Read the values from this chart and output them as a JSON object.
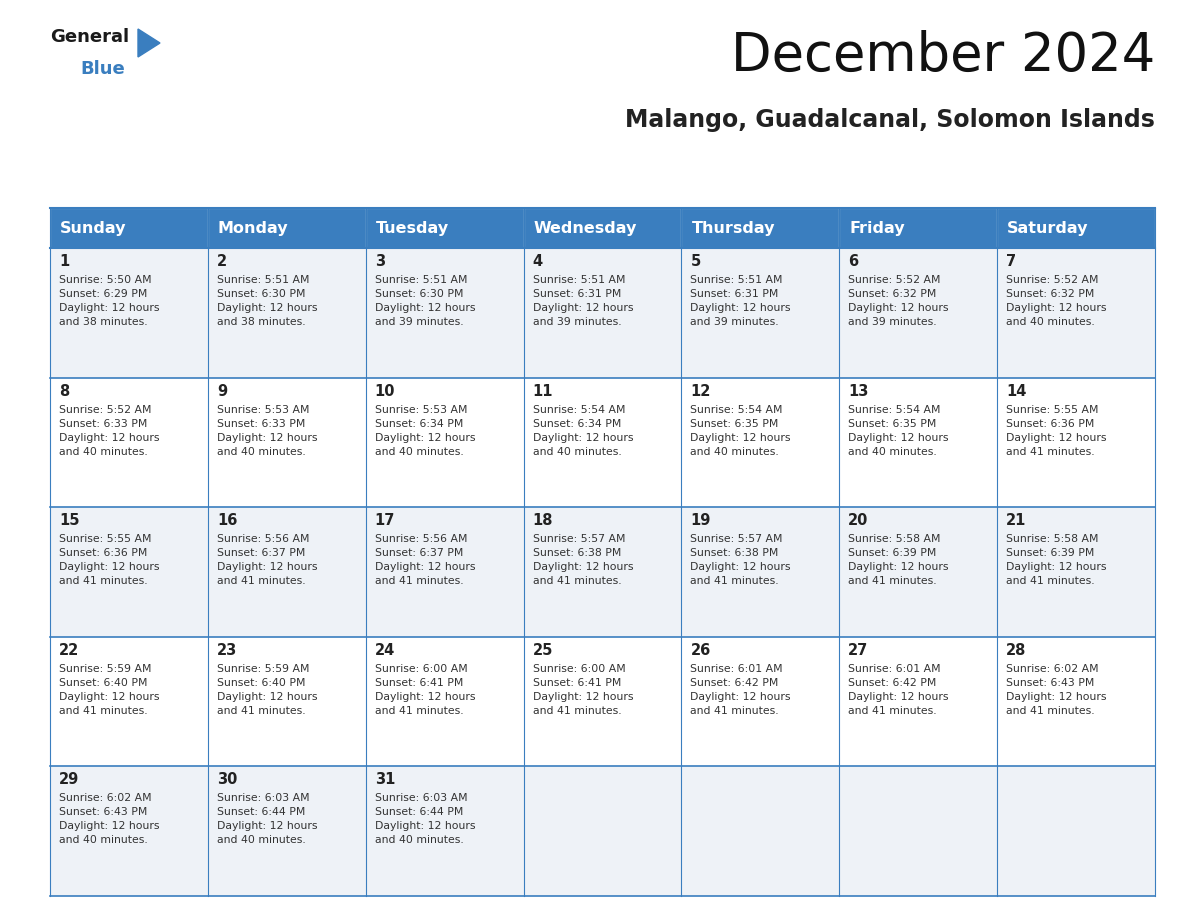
{
  "title": "December 2024",
  "subtitle": "Malango, Guadalcanal, Solomon Islands",
  "header_bg_color": "#3a7ebf",
  "header_text_color": "#ffffff",
  "days_of_week": [
    "Sunday",
    "Monday",
    "Tuesday",
    "Wednesday",
    "Thursday",
    "Friday",
    "Saturday"
  ],
  "cell_bg_even": "#eef2f7",
  "cell_bg_odd": "#ffffff",
  "cell_border_color": "#3a7ebf",
  "day_number_color": "#222222",
  "cell_text_color": "#333333",
  "weeks": [
    [
      {
        "day": 1,
        "sunrise": "5:50 AM",
        "sunset": "6:29 PM",
        "daylight_hours": 12,
        "daylight_minutes": 38
      },
      {
        "day": 2,
        "sunrise": "5:51 AM",
        "sunset": "6:30 PM",
        "daylight_hours": 12,
        "daylight_minutes": 38
      },
      {
        "day": 3,
        "sunrise": "5:51 AM",
        "sunset": "6:30 PM",
        "daylight_hours": 12,
        "daylight_minutes": 39
      },
      {
        "day": 4,
        "sunrise": "5:51 AM",
        "sunset": "6:31 PM",
        "daylight_hours": 12,
        "daylight_minutes": 39
      },
      {
        "day": 5,
        "sunrise": "5:51 AM",
        "sunset": "6:31 PM",
        "daylight_hours": 12,
        "daylight_minutes": 39
      },
      {
        "day": 6,
        "sunrise": "5:52 AM",
        "sunset": "6:32 PM",
        "daylight_hours": 12,
        "daylight_minutes": 39
      },
      {
        "day": 7,
        "sunrise": "5:52 AM",
        "sunset": "6:32 PM",
        "daylight_hours": 12,
        "daylight_minutes": 40
      }
    ],
    [
      {
        "day": 8,
        "sunrise": "5:52 AM",
        "sunset": "6:33 PM",
        "daylight_hours": 12,
        "daylight_minutes": 40
      },
      {
        "day": 9,
        "sunrise": "5:53 AM",
        "sunset": "6:33 PM",
        "daylight_hours": 12,
        "daylight_minutes": 40
      },
      {
        "day": 10,
        "sunrise": "5:53 AM",
        "sunset": "6:34 PM",
        "daylight_hours": 12,
        "daylight_minutes": 40
      },
      {
        "day": 11,
        "sunrise": "5:54 AM",
        "sunset": "6:34 PM",
        "daylight_hours": 12,
        "daylight_minutes": 40
      },
      {
        "day": 12,
        "sunrise": "5:54 AM",
        "sunset": "6:35 PM",
        "daylight_hours": 12,
        "daylight_minutes": 40
      },
      {
        "day": 13,
        "sunrise": "5:54 AM",
        "sunset": "6:35 PM",
        "daylight_hours": 12,
        "daylight_minutes": 40
      },
      {
        "day": 14,
        "sunrise": "5:55 AM",
        "sunset": "6:36 PM",
        "daylight_hours": 12,
        "daylight_minutes": 41
      }
    ],
    [
      {
        "day": 15,
        "sunrise": "5:55 AM",
        "sunset": "6:36 PM",
        "daylight_hours": 12,
        "daylight_minutes": 41
      },
      {
        "day": 16,
        "sunrise": "5:56 AM",
        "sunset": "6:37 PM",
        "daylight_hours": 12,
        "daylight_minutes": 41
      },
      {
        "day": 17,
        "sunrise": "5:56 AM",
        "sunset": "6:37 PM",
        "daylight_hours": 12,
        "daylight_minutes": 41
      },
      {
        "day": 18,
        "sunrise": "5:57 AM",
        "sunset": "6:38 PM",
        "daylight_hours": 12,
        "daylight_minutes": 41
      },
      {
        "day": 19,
        "sunrise": "5:57 AM",
        "sunset": "6:38 PM",
        "daylight_hours": 12,
        "daylight_minutes": 41
      },
      {
        "day": 20,
        "sunrise": "5:58 AM",
        "sunset": "6:39 PM",
        "daylight_hours": 12,
        "daylight_minutes": 41
      },
      {
        "day": 21,
        "sunrise": "5:58 AM",
        "sunset": "6:39 PM",
        "daylight_hours": 12,
        "daylight_minutes": 41
      }
    ],
    [
      {
        "day": 22,
        "sunrise": "5:59 AM",
        "sunset": "6:40 PM",
        "daylight_hours": 12,
        "daylight_minutes": 41
      },
      {
        "day": 23,
        "sunrise": "5:59 AM",
        "sunset": "6:40 PM",
        "daylight_hours": 12,
        "daylight_minutes": 41
      },
      {
        "day": 24,
        "sunrise": "6:00 AM",
        "sunset": "6:41 PM",
        "daylight_hours": 12,
        "daylight_minutes": 41
      },
      {
        "day": 25,
        "sunrise": "6:00 AM",
        "sunset": "6:41 PM",
        "daylight_hours": 12,
        "daylight_minutes": 41
      },
      {
        "day": 26,
        "sunrise": "6:01 AM",
        "sunset": "6:42 PM",
        "daylight_hours": 12,
        "daylight_minutes": 41
      },
      {
        "day": 27,
        "sunrise": "6:01 AM",
        "sunset": "6:42 PM",
        "daylight_hours": 12,
        "daylight_minutes": 41
      },
      {
        "day": 28,
        "sunrise": "6:02 AM",
        "sunset": "6:43 PM",
        "daylight_hours": 12,
        "daylight_minutes": 41
      }
    ],
    [
      {
        "day": 29,
        "sunrise": "6:02 AM",
        "sunset": "6:43 PM",
        "daylight_hours": 12,
        "daylight_minutes": 40
      },
      {
        "day": 30,
        "sunrise": "6:03 AM",
        "sunset": "6:44 PM",
        "daylight_hours": 12,
        "daylight_minutes": 40
      },
      {
        "day": 31,
        "sunrise": "6:03 AM",
        "sunset": "6:44 PM",
        "daylight_hours": 12,
        "daylight_minutes": 40
      },
      null,
      null,
      null,
      null
    ]
  ],
  "logo_text_general": "General",
  "logo_text_blue": "Blue",
  "logo_color_general": "#1a1a1a",
  "logo_color_blue": "#3a7ebf",
  "logo_triangle_color": "#3a7ebf",
  "title_fontsize": 38,
  "subtitle_fontsize": 17
}
